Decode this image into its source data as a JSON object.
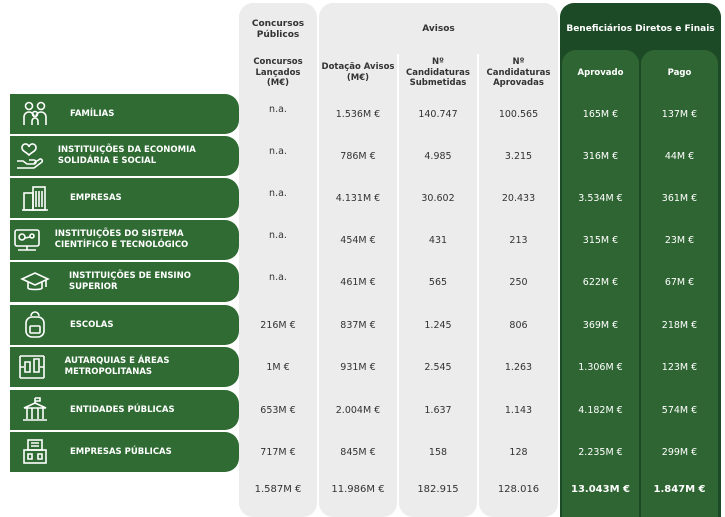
{
  "headers": {
    "concursos_group": "Concursos Públicos",
    "avisos_group": "Avisos",
    "beneficiarios_group": "Beneficiários Diretos e Finais",
    "concursos_lancados": "Concursos Lançados (M€)",
    "dotacao_avisos": "Dotação Avisos (M€)",
    "candidaturas_submetidas": "Nº Candidaturas Submetidas",
    "candidaturas_aprovadas": "Nº Candidaturas Aprovadas",
    "aprovado": "Aprovado",
    "pago": "Pago"
  },
  "rows": [
    {
      "label": "FAMÍLIAS",
      "icon": "family-icon",
      "concursos": "n.a.",
      "dotacao": "1.536M €",
      "submetidas": "140.747",
      "aprovadas": "100.565",
      "aprovado": "165M €",
      "pago": "137M €"
    },
    {
      "label": "INSTITUIÇÕES DA ECONOMIA SOLIDÁRIA E SOCIAL",
      "icon": "heart-hand-icon",
      "concursos": "n.a.",
      "dotacao": "786M €",
      "submetidas": "4.985",
      "aprovadas": "3.215",
      "aprovado": "316M €",
      "pago": "44M €"
    },
    {
      "label": "EMPRESAS",
      "icon": "buildings-icon",
      "concursos": "n.a.",
      "dotacao": "4.131M €",
      "submetidas": "30.602",
      "aprovadas": "20.433",
      "aprovado": "3.534M €",
      "pago": "361M €"
    },
    {
      "label": "INSTITUIÇÕES DO SISTEMA CIENTÍFICO E TECNOLÓGICO",
      "icon": "microscope-icon",
      "concursos": "n.a.",
      "dotacao": "454M €",
      "submetidas": "431",
      "aprovadas": "213",
      "aprovado": "315M €",
      "pago": "23M €"
    },
    {
      "label": "INSTITUIÇÕES DE ENSINO SUPERIOR",
      "icon": "graduation-cap-icon",
      "concursos": "n.a.",
      "dotacao": "461M €",
      "submetidas": "565",
      "aprovadas": "250",
      "aprovado": "622M €",
      "pago": "67M €"
    },
    {
      "label": "ESCOLAS",
      "icon": "backpack-icon",
      "concursos": "216M €",
      "dotacao": "837M €",
      "submetidas": "1.245",
      "aprovadas": "806",
      "aprovado": "369M €",
      "pago": "218M €"
    },
    {
      "label": "AUTARQUIAS E ÁREAS METROPOLITANAS",
      "icon": "city-map-icon",
      "concursos": "1M €",
      "dotacao": "931M €",
      "submetidas": "2.545",
      "aprovadas": "1.263",
      "aprovado": "1.306M €",
      "pago": "123M €"
    },
    {
      "label": "ENTIDADES PÚBLICAS",
      "icon": "government-building-icon",
      "concursos": "653M €",
      "dotacao": "2.004M €",
      "submetidas": "1.637",
      "aprovadas": "1.143",
      "aprovado": "4.182M €",
      "pago": "574M €"
    },
    {
      "label": "EMPRESAS PÚBLICAS",
      "icon": "public-company-icon",
      "concursos": "717M €",
      "dotacao": "845M €",
      "submetidas": "158",
      "aprovadas": "128",
      "aprovado": "2.235M €",
      "pago": "299M €"
    }
  ],
  "totals": {
    "concursos": "1.587M €",
    "dotacao": "11.986M €",
    "submetidas": "182.915",
    "aprovadas": "128.016",
    "aprovado": "13.043M €",
    "pago": "1.847M €"
  },
  "colors": {
    "row_label_bg": "#2f6b33",
    "beneficiarios_dark": "#1d4a26",
    "beneficiarios_mid": "#2e6532",
    "gray_panel": "#ececec"
  }
}
